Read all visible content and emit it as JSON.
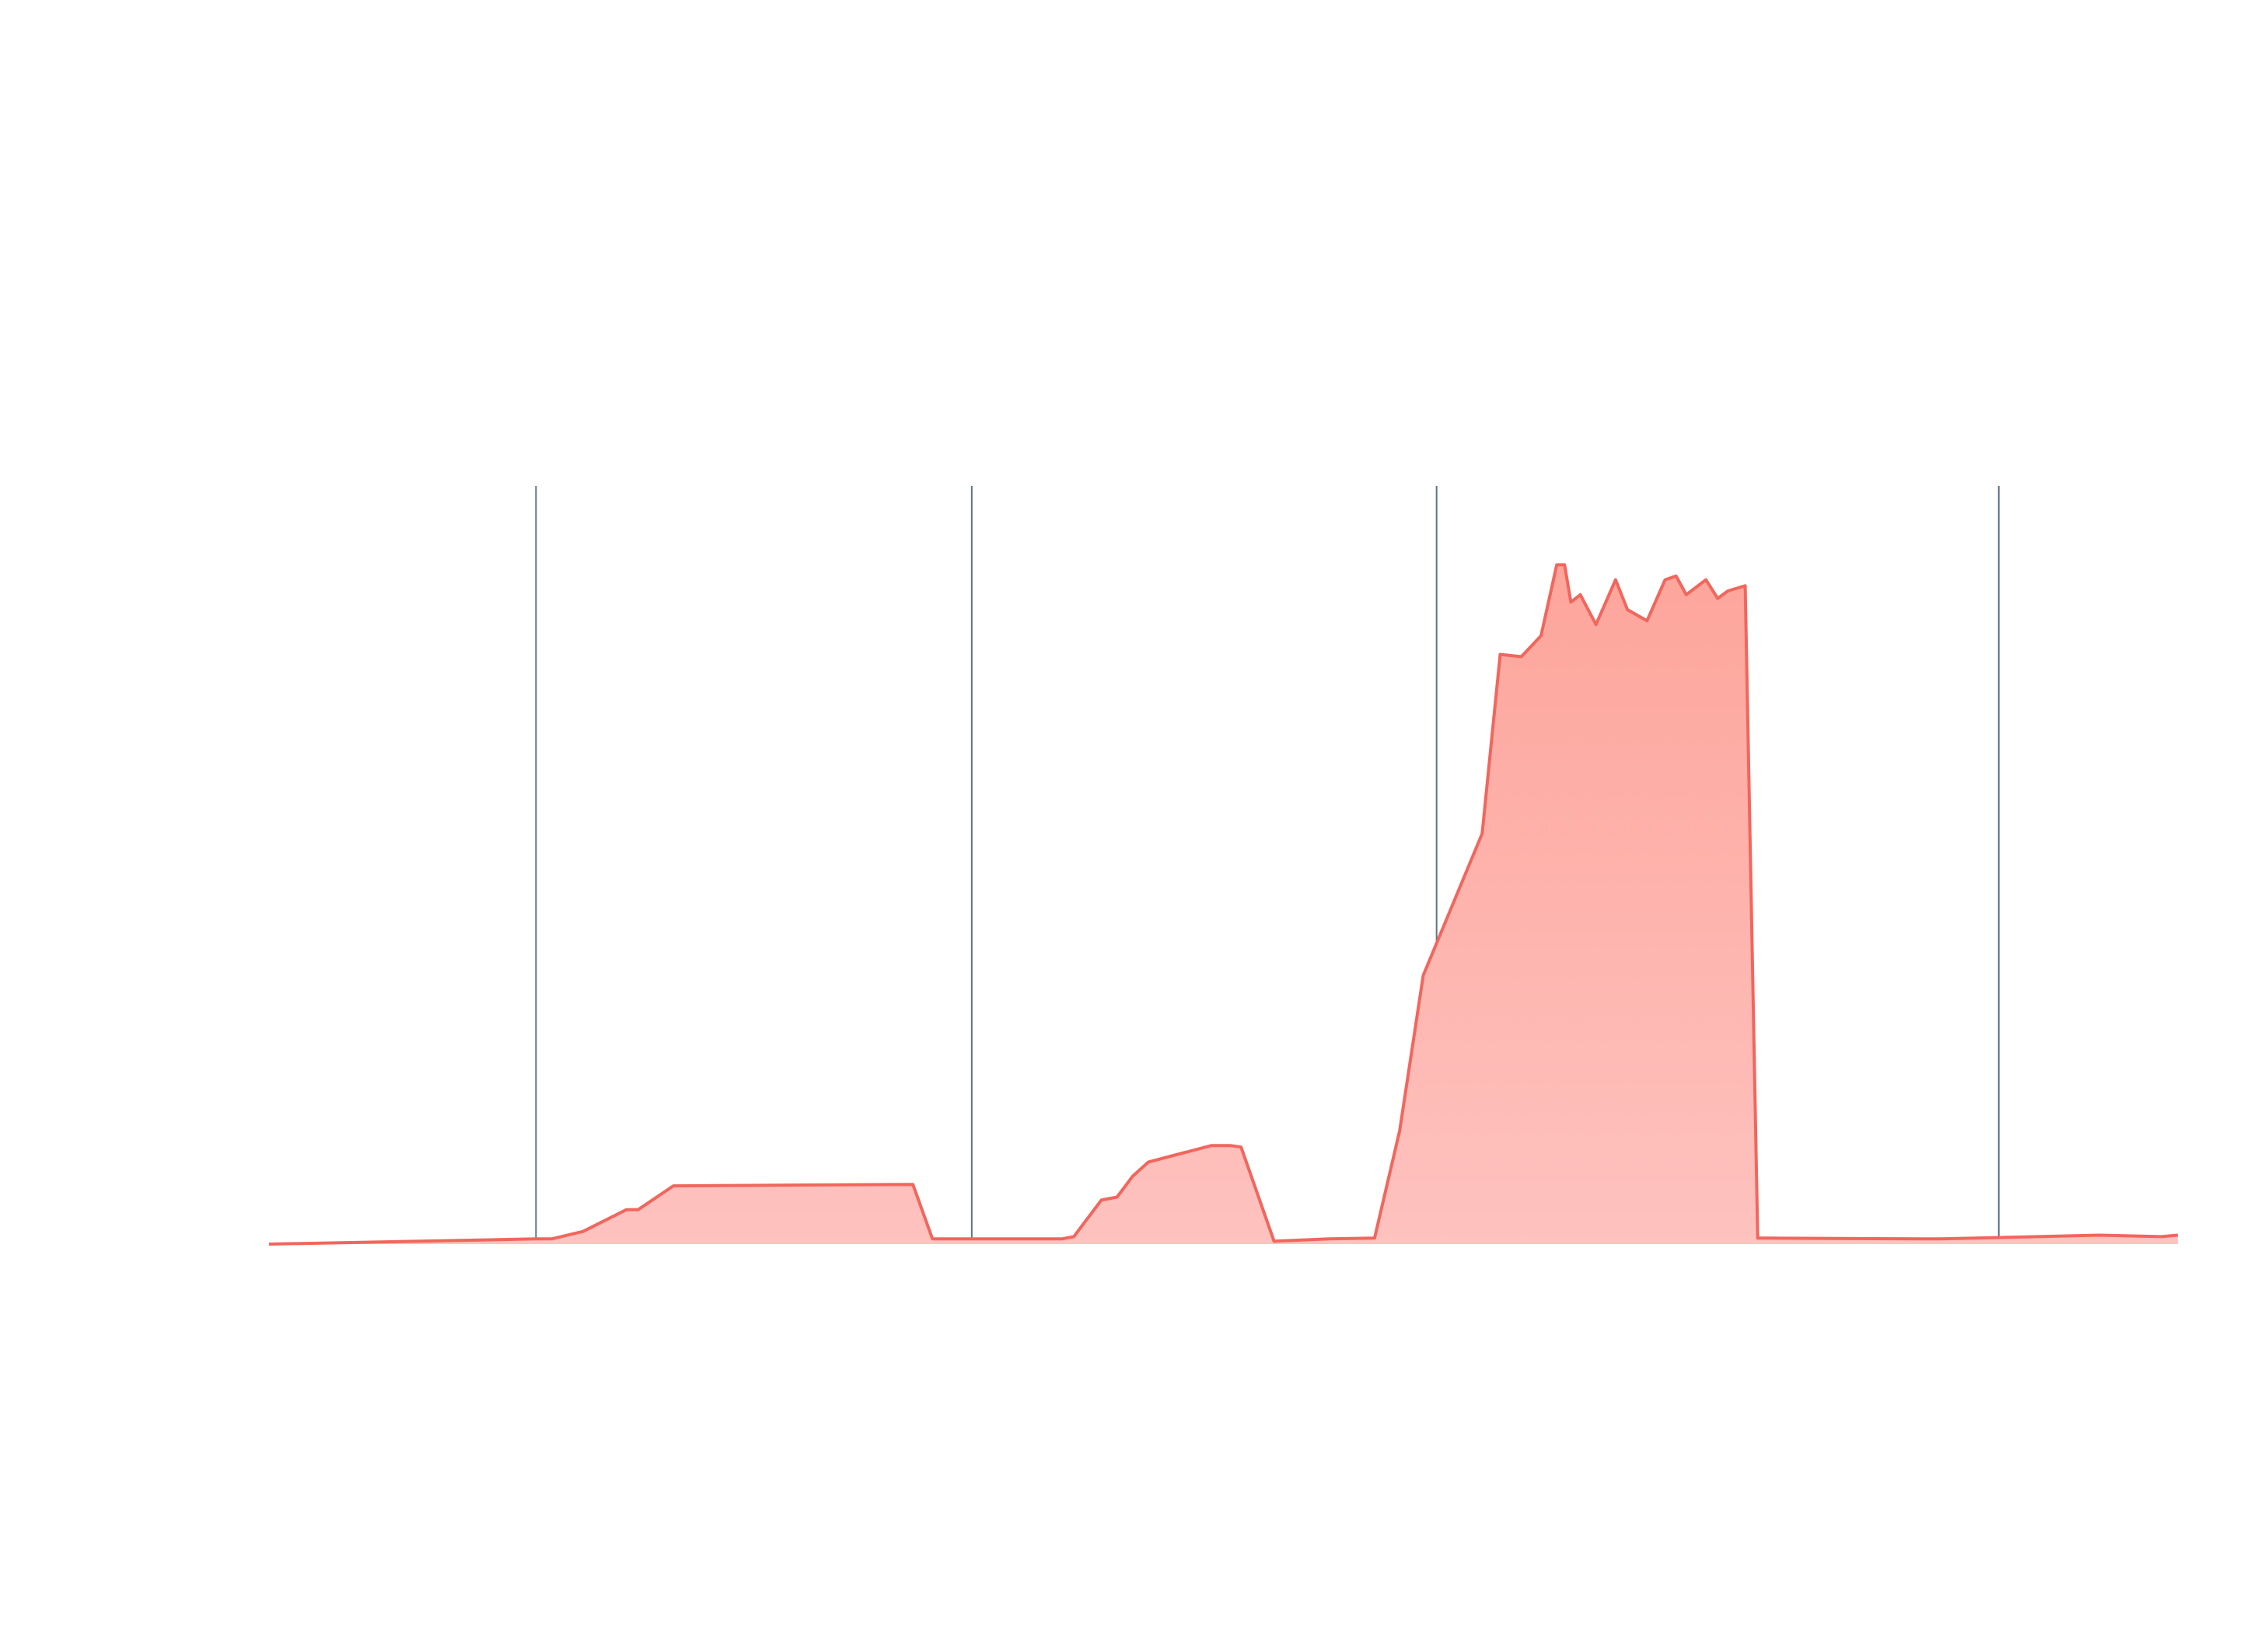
{
  "chart_data": {
    "type": "area",
    "title": "",
    "xlabel": "",
    "ylabel": "",
    "grid": false,
    "legend": "none",
    "xlim": [
      0,
      2431
    ],
    "ylim": [
      0,
      100
    ],
    "series": [
      {
        "color": "#f1665d",
        "fill_color_top": "#fda59b",
        "fill_color_bottom": "#fec2bf",
        "x": [
          0,
          340,
          360,
          400,
          455,
          470,
          515,
          820,
          845,
          1010,
          1025,
          1050,
          1060,
          1080,
          1100,
          1120,
          1200,
          1225,
          1238,
          1280,
          1350,
          1408,
          1440,
          1470,
          1545,
          1568,
          1595,
          1620,
          1640,
          1650,
          1658,
          1670,
          1690,
          1715,
          1730,
          1755,
          1778,
          1792,
          1805,
          1830,
          1845,
          1858,
          1880,
          1896,
          1912,
          2105,
          2128,
          2331,
          2410,
          2431
        ],
        "y": [
          0,
          0.7,
          0.7,
          1.7,
          4.6,
          4.6,
          7.8,
          8.0,
          0.7,
          0.7,
          1.0,
          4.5,
          5.9,
          6.3,
          9.1,
          11.0,
          13.2,
          13.2,
          13.0,
          0.4,
          0.7,
          0.8,
          15.2,
          36.0,
          55.0,
          79.0,
          78.7,
          81.5,
          91.0,
          91.0,
          86.0,
          87.0,
          83.0,
          89.0,
          85.0,
          83.5,
          89.0,
          89.5,
          87.0,
          89.0,
          86.5,
          87.5,
          88.2,
          0.8,
          0.8,
          0.7,
          0.7,
          1.2,
          1.0,
          1.2
        ]
      }
    ],
    "vertical_markers": [
      340,
      895,
      1487,
      2203
    ]
  }
}
